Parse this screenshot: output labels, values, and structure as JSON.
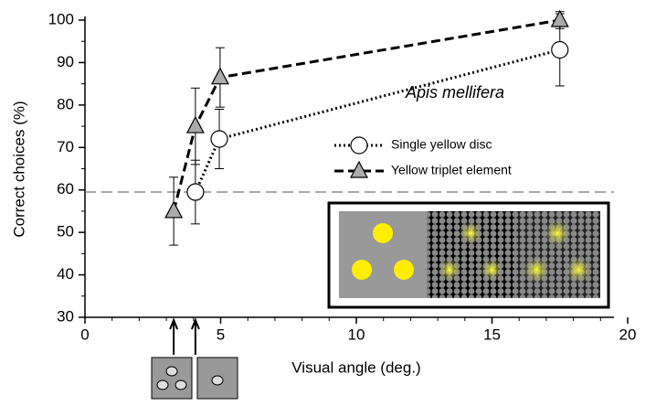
{
  "chart_data": {
    "type": "line",
    "x_label": "Visual angle (deg.)",
    "y_label": "Correct choices (%)",
    "legend_title": "Apis mellifera",
    "xlim": [
      0,
      20
    ],
    "xticks": [
      0,
      5,
      10,
      15,
      20
    ],
    "ylim": [
      30,
      100
    ],
    "yticks": [
      30,
      40,
      50,
      60,
      70,
      80,
      90,
      100
    ],
    "reference_line": 59.5,
    "series": [
      {
        "name": "Single yellow disc",
        "color": "#000000",
        "marker": "circle",
        "line_style": "dotted",
        "x": [
          4.07,
          4.95,
          17.5
        ],
        "values": [
          59.5,
          72,
          93
        ],
        "errors": [
          7.5,
          7,
          8.5
        ]
      },
      {
        "name": "Yellow triplet element",
        "color": "#000000",
        "marker": "triangle",
        "line_style": "dashed",
        "x": [
          3.27,
          4.07,
          4.98,
          17.5
        ],
        "values": [
          55,
          75,
          86.5,
          100
        ],
        "errors": [
          8,
          9,
          7,
          2
        ]
      }
    ]
  }
}
